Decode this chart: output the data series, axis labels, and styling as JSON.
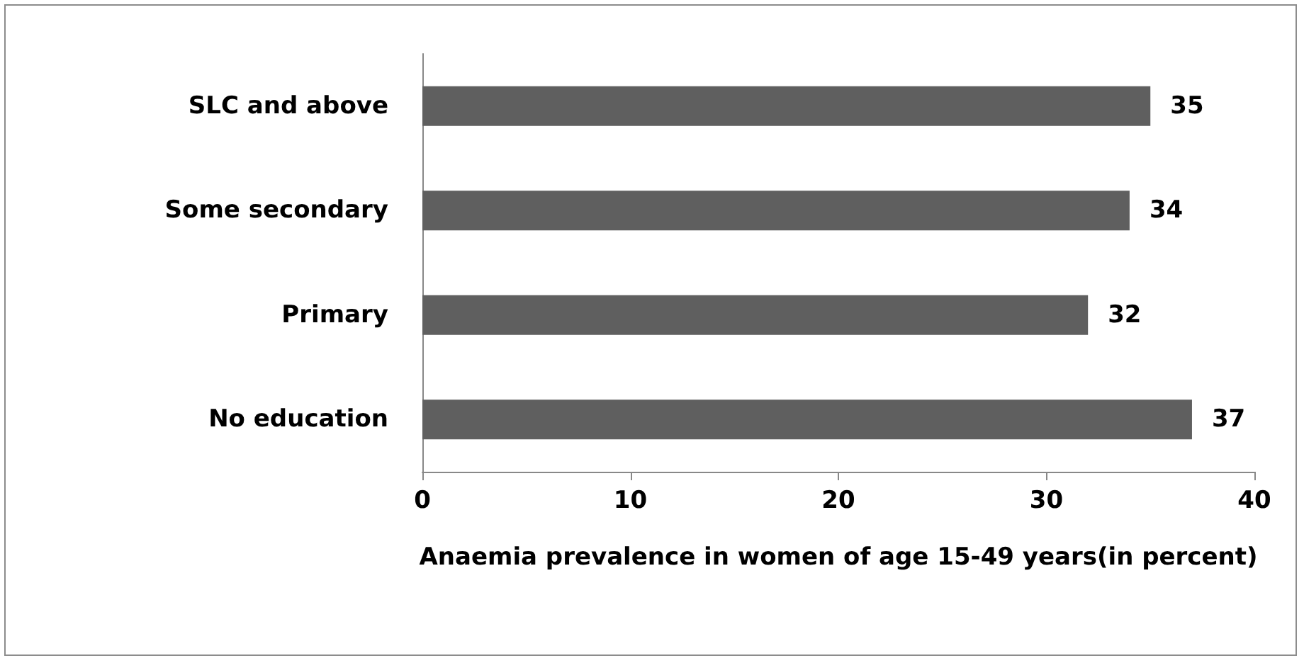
{
  "chart_data": {
    "type": "bar",
    "orientation": "horizontal",
    "categories": [
      "SLC and above",
      "Some secondary",
      "Primary",
      "No education"
    ],
    "values": [
      35,
      34,
      32,
      37
    ],
    "color": "#5f5f5f",
    "data_labels": true,
    "xlabel": "Anaemia prevalence in women of age 15-49 years(in percent)",
    "xlim": [
      0,
      40
    ],
    "xticks": [
      0,
      10,
      20,
      30,
      40
    ],
    "grid": false
  }
}
